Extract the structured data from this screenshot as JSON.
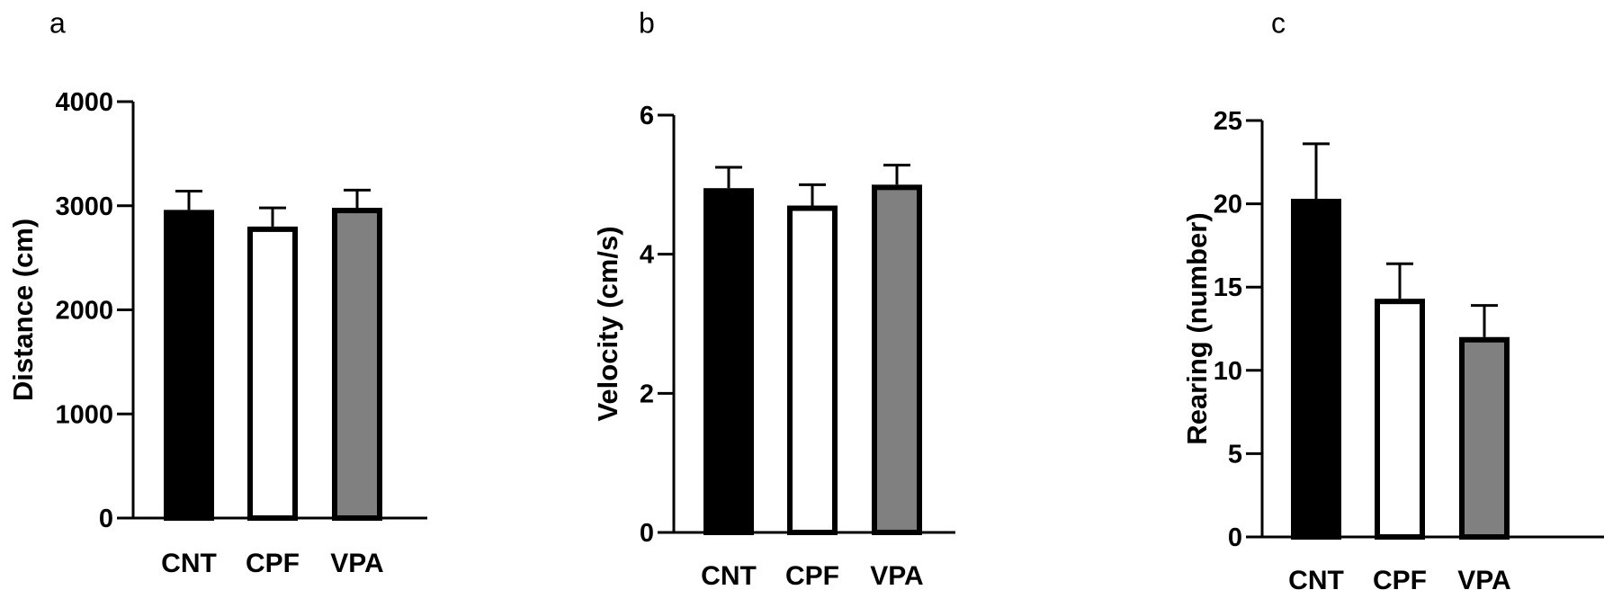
{
  "chart_data": [
    {
      "type": "bar",
      "panel_label": "a",
      "categories": [
        "CNT",
        "CPF",
        "VPA"
      ],
      "series": [
        {
          "values": [
            2960,
            2800,
            2980
          ],
          "errors": [
            180,
            180,
            170
          ]
        }
      ],
      "bar_colors": [
        "#000000",
        "#ffffff",
        "#808080"
      ],
      "ylabel": "Distance (cm)",
      "ylim": [
        0,
        4000
      ],
      "yticks": [
        0,
        1000,
        2000,
        3000,
        4000
      ]
    },
    {
      "type": "bar",
      "panel_label": "b",
      "categories": [
        "CNT",
        "CPF",
        "VPA"
      ],
      "series": [
        {
          "values": [
            4.95,
            4.7,
            5.0
          ],
          "errors": [
            0.3,
            0.3,
            0.28
          ]
        }
      ],
      "bar_colors": [
        "#000000",
        "#ffffff",
        "#808080"
      ],
      "ylabel": "Velocity (cm/s)",
      "ylim": [
        0,
        6
      ],
      "yticks": [
        0,
        2,
        4,
        6
      ]
    },
    {
      "type": "bar",
      "panel_label": "c",
      "categories": [
        "CNT",
        "CPF",
        "VPA"
      ],
      "series": [
        {
          "values": [
            20.3,
            14.3,
            12.0
          ],
          "errors": [
            3.3,
            2.1,
            1.9
          ]
        }
      ],
      "bar_colors": [
        "#000000",
        "#ffffff",
        "#808080"
      ],
      "ylabel": "Rearing (number)",
      "ylim": [
        0,
        25
      ],
      "yticks": [
        0,
        5,
        10,
        15,
        20,
        25
      ]
    }
  ]
}
